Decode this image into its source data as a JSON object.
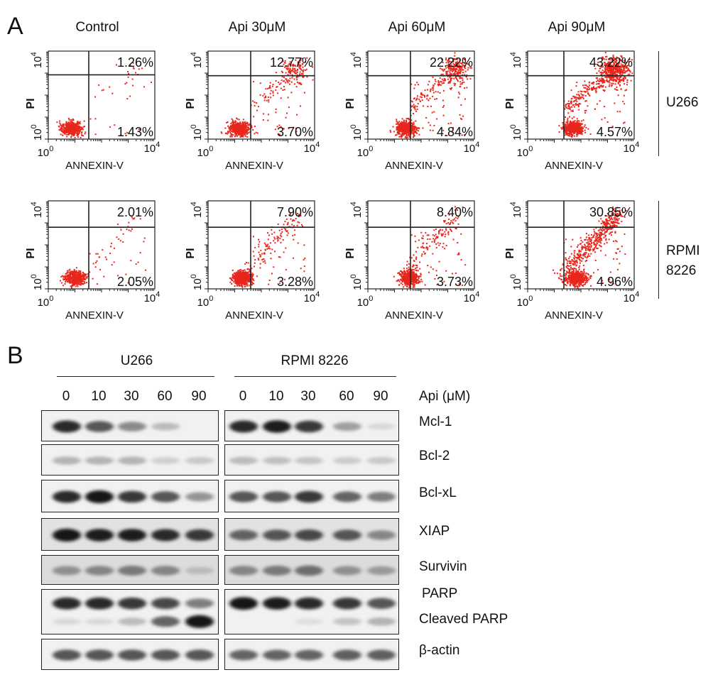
{
  "panel_a": {
    "letter": "A",
    "conditions": [
      "Control",
      "Api 30μM",
      "Api 60μM",
      "Api 90μM"
    ],
    "cell_lines": [
      {
        "lines": [
          "U266"
        ]
      },
      {
        "lines": [
          "RPMI",
          "8226"
        ]
      }
    ],
    "axes": {
      "xlabel": "ANNEXIN-V",
      "ylabel": "PI",
      "tick_min": "10",
      "tick_min_exp": "0",
      "tick_max": "10",
      "tick_max_exp": "4"
    },
    "plots": [
      {
        "row": 0,
        "col": 0,
        "upper_right": "1.26%",
        "lower_right": "1.43%",
        "upper_right_value": 1.26,
        "lower_right_value": 1.43
      },
      {
        "row": 0,
        "col": 1,
        "upper_right": "12.77%",
        "lower_right": "3.70%",
        "upper_right_value": 12.77,
        "lower_right_value": 3.7
      },
      {
        "row": 0,
        "col": 2,
        "upper_right": "22.22%",
        "lower_right": "4.84%",
        "upper_right_value": 22.22,
        "lower_right_value": 4.84
      },
      {
        "row": 0,
        "col": 3,
        "upper_right": "43.22%",
        "lower_right": "4.57%",
        "upper_right_value": 43.22,
        "lower_right_value": 4.57
      },
      {
        "row": 1,
        "col": 0,
        "upper_right": "2.01%",
        "lower_right": "2.05%",
        "upper_right_value": 2.01,
        "lower_right_value": 2.05
      },
      {
        "row": 1,
        "col": 1,
        "upper_right": "7.90%",
        "lower_right": "3.28%",
        "upper_right_value": 7.9,
        "lower_right_value": 3.28
      },
      {
        "row": 1,
        "col": 2,
        "upper_right": "8.40%",
        "lower_right": "3.73%",
        "upper_right_value": 8.4,
        "lower_right_value": 3.73
      },
      {
        "row": 1,
        "col": 3,
        "upper_right": "30.85%",
        "lower_right": "4.96%",
        "upper_right_value": 30.85,
        "lower_right_value": 4.96
      }
    ],
    "dot_color": "#e8261c"
  },
  "panel_b": {
    "letter": "B",
    "groups": [
      "U266",
      "RPMI 8226"
    ],
    "doses": [
      "0",
      "10",
      "30",
      "60",
      "90"
    ],
    "dose_label": "Api (μM)",
    "proteins": [
      "Mcl-1",
      "Bcl-2",
      "Bcl-xL",
      "XIAP",
      "Survivin",
      "PARP",
      "Cleaved PARP",
      "β-actin"
    ],
    "band_intensity": {
      "U266": {
        "Mcl-1": [
          0.9,
          0.75,
          0.55,
          0.3,
          0.0
        ],
        "Bcl-2": [
          0.35,
          0.35,
          0.35,
          0.18,
          0.22
        ],
        "Bcl-xL": [
          0.9,
          1.0,
          0.85,
          0.75,
          0.5
        ],
        "XIAP": [
          1.0,
          0.95,
          0.95,
          0.9,
          0.85
        ],
        "Survivin": [
          0.5,
          0.55,
          0.6,
          0.55,
          0.25
        ],
        "PARP": [
          0.9,
          0.9,
          0.85,
          0.8,
          0.6
        ],
        "Cleaved PARP": [
          0.1,
          0.1,
          0.3,
          0.7,
          1.0
        ],
        "β-actin": [
          0.75,
          0.75,
          0.75,
          0.75,
          0.75
        ]
      },
      "RPMI 8226": {
        "Mcl-1": [
          0.9,
          0.95,
          0.85,
          0.45,
          0.1
        ],
        "Bcl-2": [
          0.3,
          0.28,
          0.25,
          0.2,
          0.22
        ],
        "Bcl-xL": [
          0.75,
          0.75,
          0.85,
          0.7,
          0.6
        ],
        "XIAP": [
          0.7,
          0.75,
          0.8,
          0.75,
          0.55
        ],
        "Survivin": [
          0.55,
          0.6,
          0.65,
          0.5,
          0.45
        ],
        "PARP": [
          1.0,
          0.95,
          0.9,
          0.85,
          0.75
        ],
        "Cleaved PARP": [
          0.0,
          0.0,
          0.05,
          0.25,
          0.35
        ],
        "β-actin": [
          0.7,
          0.7,
          0.7,
          0.72,
          0.72
        ]
      }
    }
  }
}
